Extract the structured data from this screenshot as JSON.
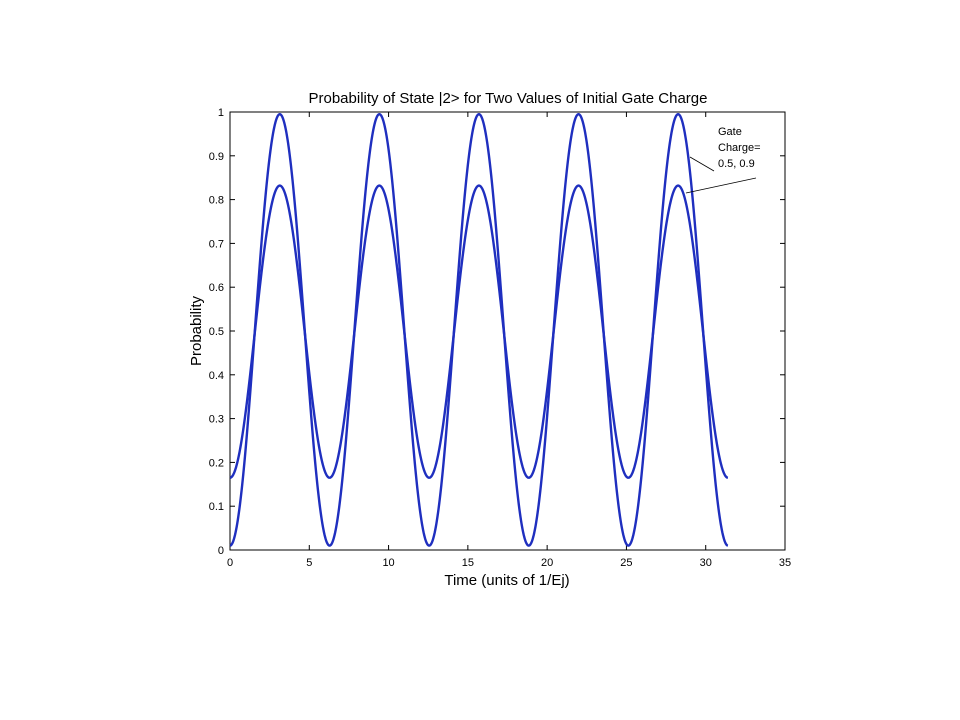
{
  "chart_data": {
    "type": "line",
    "title": "Probability of State |2> for Two Values of Initial Gate Charge",
    "xlabel": "Time (units of 1/Ej)",
    "ylabel": "Probability",
    "xlim": [
      0,
      35
    ],
    "ylim": [
      0,
      1
    ],
    "xticks": [
      "0",
      "5",
      "10",
      "15",
      "20",
      "25",
      "30",
      "35"
    ],
    "yticks": [
      "0",
      "0.1",
      "0.2",
      "0.3",
      "0.4",
      "0.5",
      "0.6",
      "0.7",
      "0.8",
      "0.9",
      "1"
    ],
    "x_range": [
      0,
      31.4
    ],
    "period": 6.28,
    "series": [
      {
        "min": 0.01,
        "max": 0.995,
        "color": "#1f2fbf"
      },
      {
        "min": 0.165,
        "max": 0.832,
        "color": "#1f2fbf"
      }
    ],
    "annotation": {
      "lines": [
        "Gate",
        "Charge=",
        "0.5, 0.9"
      ]
    },
    "grid": false,
    "legend": "none"
  }
}
